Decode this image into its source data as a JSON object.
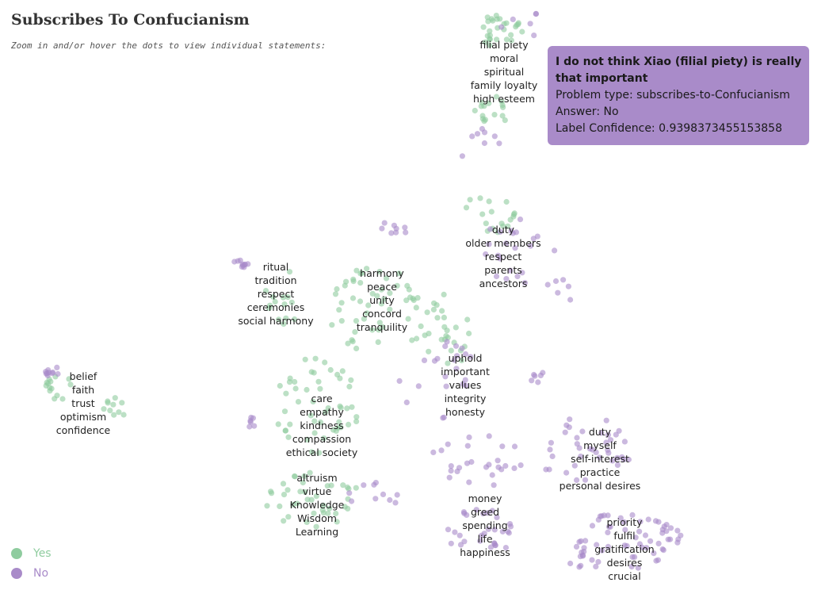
{
  "title": "Subscribes To Confucianism",
  "subtitle": "Zoom in and/or hover the dots to view individual statements:",
  "tooltip": {
    "statement": "I do not think Xiao (filial piety) is really that important",
    "problem_type": "Problem type: subscribes-to-Confucianism",
    "answer": "Answer: No",
    "confidence": "Label Confidence: 0.9398373455153858"
  },
  "legend": [
    {
      "label": "Yes",
      "color": "#8fcc9f"
    },
    {
      "label": "No",
      "color": "#a98bc9"
    }
  ],
  "chart_data": {
    "type": "scatter",
    "series": [
      {
        "name": "Yes",
        "color": "#8fcc9f"
      },
      {
        "name": "No",
        "color": "#a98bc9"
      }
    ],
    "cluster_labels": [
      {
        "cx": 636,
        "cy": 57,
        "words": [
          "filial piety",
          "moral",
          "spiritual",
          "family loyalty",
          "high esteem"
        ]
      },
      {
        "cx": 635,
        "cy": 290,
        "words": [
          "duty",
          "older members",
          "respect",
          "parents",
          "ancestors"
        ]
      },
      {
        "cx": 348,
        "cy": 337,
        "words": [
          "ritual",
          "tradition",
          "respect",
          "ceremonies",
          "social harmony"
        ]
      },
      {
        "cx": 482,
        "cy": 345,
        "words": [
          "harmony",
          "peace",
          "unity",
          "concord",
          "tranquility"
        ]
      },
      {
        "cx": 105,
        "cy": 475,
        "words": [
          "belief",
          "faith",
          "trust",
          "optimism",
          "confidence"
        ]
      },
      {
        "cx": 587,
        "cy": 452,
        "words": [
          "uphold",
          "important",
          "values",
          "integrity",
          "honesty"
        ]
      },
      {
        "cx": 406,
        "cy": 503,
        "words": [
          "care",
          "empathy",
          "kindness",
          "compassion",
          "ethical society"
        ]
      },
      {
        "cx": 757,
        "cy": 545,
        "words": [
          "duty",
          "myself",
          "self-interest",
          "practice",
          "personal desires"
        ]
      },
      {
        "cx": 400,
        "cy": 603,
        "words": [
          "altruism",
          "virtue",
          "Knowledge",
          "Wisdom",
          "Learning"
        ]
      },
      {
        "cx": 612,
        "cy": 629,
        "words": [
          "money",
          "greed",
          "spending",
          "life",
          "happiness"
        ]
      },
      {
        "cx": 788,
        "cy": 659,
        "words": [
          "priority",
          "fulfil",
          "gratification",
          "desires",
          "crucial"
        ]
      }
    ],
    "point_clusters": [
      {
        "series": "Yes",
        "cx": 630,
        "cy": 40,
        "rx": 30,
        "ry": 22,
        "n": 28
      },
      {
        "series": "Yes",
        "cx": 620,
        "cy": 140,
        "rx": 25,
        "ry": 20,
        "n": 16
      },
      {
        "series": "No",
        "cx": 655,
        "cy": 30,
        "rx": 30,
        "ry": 20,
        "n": 6
      },
      {
        "series": "No",
        "cx": 610,
        "cy": 180,
        "rx": 40,
        "ry": 25,
        "n": 8
      },
      {
        "series": "Yes",
        "cx": 615,
        "cy": 270,
        "rx": 35,
        "ry": 25,
        "n": 18
      },
      {
        "series": "No",
        "cx": 650,
        "cy": 320,
        "rx": 50,
        "ry": 45,
        "n": 22
      },
      {
        "series": "No",
        "cx": 700,
        "cy": 370,
        "rx": 25,
        "ry": 20,
        "n": 6
      },
      {
        "series": "No",
        "cx": 305,
        "cy": 333,
        "rx": 12,
        "ry": 5,
        "n": 10
      },
      {
        "series": "Yes",
        "cx": 355,
        "cy": 375,
        "rx": 30,
        "ry": 35,
        "n": 14
      },
      {
        "series": "Yes",
        "cx": 470,
        "cy": 390,
        "rx": 60,
        "ry": 55,
        "n": 50
      },
      {
        "series": "No",
        "cx": 490,
        "cy": 300,
        "rx": 35,
        "ry": 20,
        "n": 8
      },
      {
        "series": "Yes",
        "cx": 555,
        "cy": 420,
        "rx": 40,
        "ry": 50,
        "n": 30
      },
      {
        "series": "No",
        "cx": 560,
        "cy": 480,
        "rx": 60,
        "ry": 50,
        "n": 22
      },
      {
        "series": "Yes",
        "cx": 75,
        "cy": 490,
        "rx": 20,
        "ry": 18,
        "n": 14
      },
      {
        "series": "No",
        "cx": 65,
        "cy": 468,
        "rx": 12,
        "ry": 8,
        "n": 10
      },
      {
        "series": "Yes",
        "cx": 145,
        "cy": 515,
        "rx": 15,
        "ry": 15,
        "n": 10
      },
      {
        "series": "Yes",
        "cx": 400,
        "cy": 520,
        "rx": 55,
        "ry": 70,
        "n": 50
      },
      {
        "series": "No",
        "cx": 316,
        "cy": 533,
        "rx": 8,
        "ry": 8,
        "n": 6
      },
      {
        "series": "Yes",
        "cx": 395,
        "cy": 630,
        "rx": 60,
        "ry": 35,
        "n": 40
      },
      {
        "series": "No",
        "cx": 470,
        "cy": 630,
        "rx": 40,
        "ry": 25,
        "n": 10
      },
      {
        "series": "No",
        "cx": 600,
        "cy": 580,
        "rx": 60,
        "ry": 35,
        "n": 26
      },
      {
        "series": "No",
        "cx": 605,
        "cy": 670,
        "rx": 50,
        "ry": 30,
        "n": 30
      },
      {
        "series": "No",
        "cx": 740,
        "cy": 570,
        "rx": 60,
        "ry": 45,
        "n": 38
      },
      {
        "series": "No",
        "cx": 680,
        "cy": 475,
        "rx": 15,
        "ry": 10,
        "n": 6
      },
      {
        "series": "No",
        "cx": 790,
        "cy": 680,
        "rx": 65,
        "ry": 38,
        "n": 45
      },
      {
        "series": "No",
        "cx": 845,
        "cy": 680,
        "rx": 15,
        "ry": 20,
        "n": 10
      },
      {
        "series": "No",
        "cx": 740,
        "cy": 700,
        "rx": 25,
        "ry": 20,
        "n": 12
      }
    ]
  }
}
